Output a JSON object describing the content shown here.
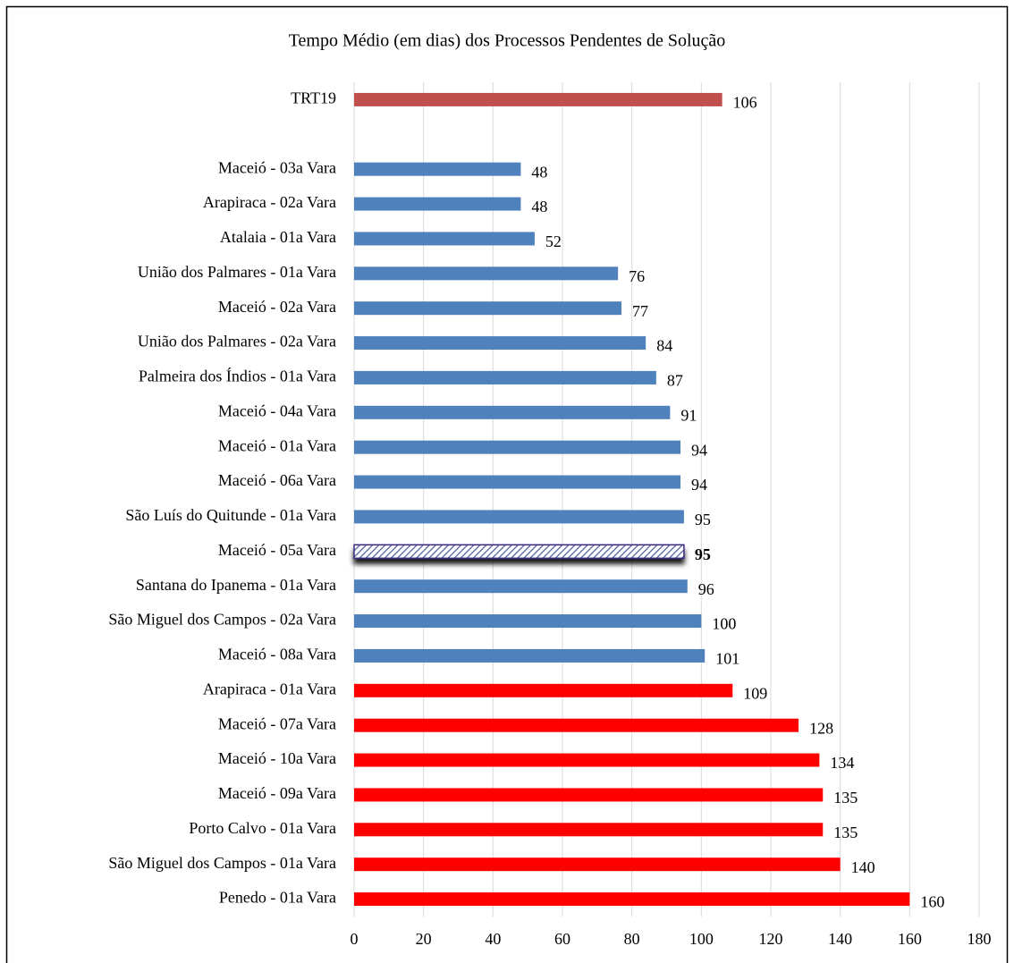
{
  "chart_data": {
    "type": "barh",
    "title": "Tempo Médio (em dias) dos Processos Pendentes de Solução",
    "categories": [
      "TRT19",
      null,
      "Maceió - 03a Vara",
      "Arapiraca - 02a Vara",
      "Atalaia - 01a Vara",
      "União dos Palmares - 01a Vara",
      "Maceió - 02a Vara",
      "União dos Palmares - 02a Vara",
      "Palmeira dos Índios - 01a Vara",
      "Maceió - 04a Vara",
      "Maceió - 01a Vara",
      "Maceió - 06a Vara",
      "São Luís do Quitunde - 01a Vara",
      "Maceió - 05a Vara",
      "Santana do Ipanema - 01a Vara",
      "São Miguel dos Campos - 02a Vara",
      "Maceió - 08a Vara",
      "Arapiraca - 01a Vara",
      "Maceió - 07a Vara",
      "Maceió - 10a Vara",
      "Maceió - 09a Vara",
      "Porto Calvo - 01a Vara",
      "São Miguel dos Campos - 01a Vara",
      "Penedo - 01a Vara"
    ],
    "values": [
      106,
      null,
      48,
      48,
      52,
      76,
      77,
      84,
      87,
      91,
      94,
      94,
      95,
      95,
      96,
      100,
      101,
      109,
      128,
      134,
      135,
      135,
      140,
      160
    ],
    "colors": [
      "#c0504d",
      null,
      "#4f81bd",
      "#4f81bd",
      "#4f81bd",
      "#4f81bd",
      "#4f81bd",
      "#4f81bd",
      "#4f81bd",
      "#4f81bd",
      "#4f81bd",
      "#4f81bd",
      "#4f81bd",
      "#4f81bd",
      "#4f81bd",
      "#4f81bd",
      "#4f81bd",
      "#ff0000",
      "#ff0000",
      "#ff0000",
      "#ff0000",
      "#ff0000",
      "#ff0000",
      "#ff0000"
    ],
    "highlight": 13,
    "xlim": [
      0,
      180
    ],
    "xticks": [
      0,
      20,
      40,
      60,
      80,
      100,
      120,
      140,
      160,
      180
    ],
    "grid": true
  }
}
